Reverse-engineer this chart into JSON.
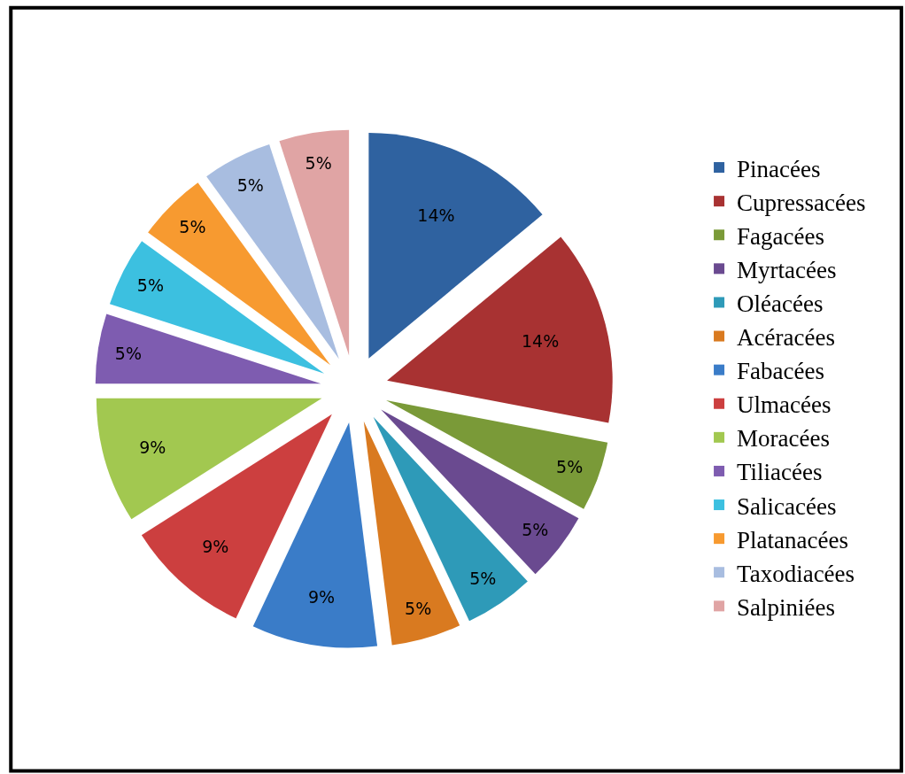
{
  "chart_data": {
    "type": "pie",
    "categories": [
      "Pinacées",
      "Cupressacées",
      "Fagacées",
      "Myrtacées",
      "Oléacées",
      "Acéracées",
      "Fabacées",
      "Ulmacées",
      "Moracées",
      "Tiliacées",
      "Salicacées",
      "Platanacées",
      "Taxodiacées",
      "Salpiniées"
    ],
    "values": [
      14,
      14,
      5,
      5,
      5,
      5,
      9,
      9,
      9,
      5,
      5,
      5,
      5,
      5
    ],
    "colors": [
      "#2f62a0",
      "#a83232",
      "#7a9a38",
      "#6a4a90",
      "#2e9ab8",
      "#d97a20",
      "#3a7cc8",
      "#cc3f3f",
      "#a2c850",
      "#7e5cb0",
      "#3cc0e0",
      "#f79a30",
      "#a8bde0",
      "#e0a4a4"
    ],
    "value_labels": [
      "14%",
      "14%",
      "5%",
      "5%",
      "5%",
      "5%",
      "9%",
      "9%",
      "9%",
      "5%",
      "5%",
      "5%",
      "5%",
      "5%"
    ],
    "legend": "right"
  }
}
